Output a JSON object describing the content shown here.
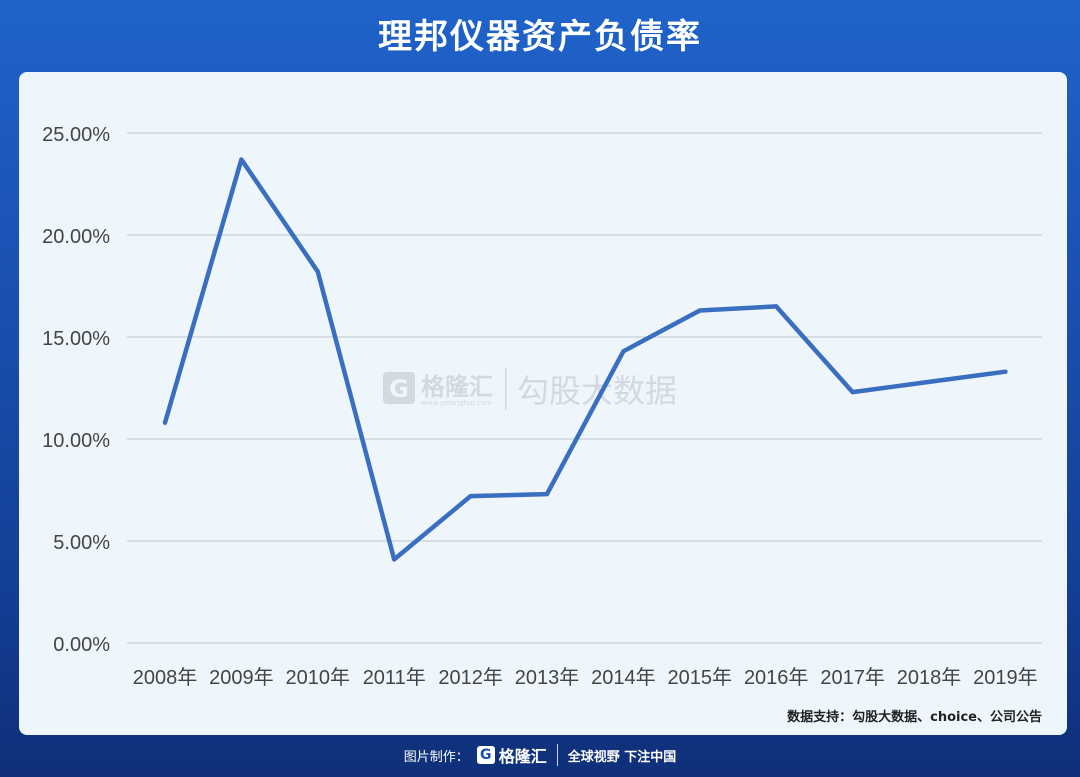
{
  "header": {
    "title": "理邦仪器资产负债率"
  },
  "watermark": {
    "brand": "格隆汇",
    "brand_sub": "www.gelonghui.com",
    "text": "勾股大数据"
  },
  "source": "数据支持：勾股大数据、choice、公司公告",
  "footer": {
    "maker_label": "图片制作：",
    "brand": "格隆汇",
    "slogan": "全球视野 下注中国"
  },
  "colors": {
    "line": "#3a6ec0",
    "grid": "#c9ced6",
    "panel": "#eef6fc"
  },
  "chart_data": {
    "type": "line",
    "categories": [
      "2008年",
      "2009年",
      "2010年",
      "2011年",
      "2012年",
      "2013年",
      "2014年",
      "2015年",
      "2016年",
      "2017年",
      "2018年",
      "2019年"
    ],
    "series": [
      {
        "values": [
          10.8,
          23.7,
          18.2,
          4.1,
          7.2,
          7.3,
          14.3,
          16.3,
          16.5,
          12.3,
          12.8,
          13.3
        ]
      }
    ],
    "ylim": [
      0,
      25
    ],
    "yticks": [
      0,
      5,
      10,
      15,
      20,
      25
    ],
    "ytick_labels": [
      "0.00%",
      "5.00%",
      "10.00%",
      "15.00%",
      "20.00%",
      "25.00%"
    ],
    "grid": true,
    "legend": "none"
  }
}
